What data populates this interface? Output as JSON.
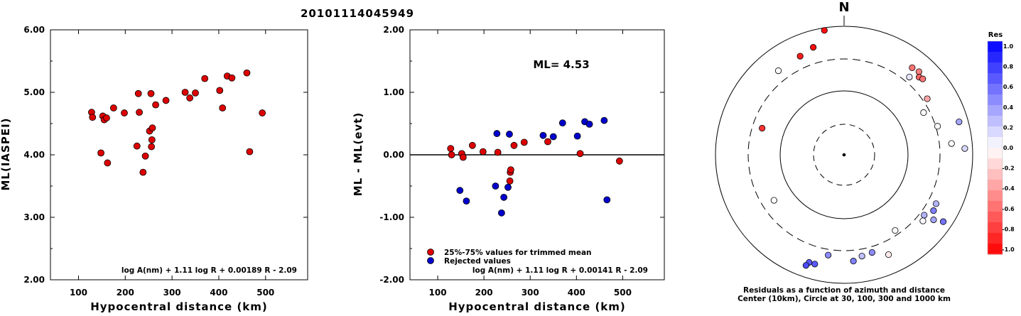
{
  "title": "20101114045949",
  "chart_data": [
    {
      "type": "scatter",
      "xlabel": "Hypocentral distance (km)",
      "ylabel": "ML(IASPEI)",
      "xlim": [
        40,
        590
      ],
      "ylim": [
        2.0,
        6.0
      ],
      "xticks": [
        "100",
        "200",
        "300",
        "400",
        "500"
      ],
      "yticks": [
        "2.00",
        "3.00",
        "4.00",
        "5.00",
        "6.00"
      ],
      "formula": "log A(nm) + 1.11 log R + 0.00189 R - 2.09",
      "series": [
        {
          "color": "#dd0000",
          "points": [
            [
              128,
              4.68
            ],
            [
              130,
              4.6
            ],
            [
              148,
              4.03
            ],
            [
              152,
              4.62
            ],
            [
              155,
              4.56
            ],
            [
              160,
              4.59
            ],
            [
              162,
              3.87
            ],
            [
              175,
              4.75
            ],
            [
              198,
              4.67
            ],
            [
              225,
              4.14
            ],
            [
              228,
              4.98
            ],
            [
              230,
              4.68
            ],
            [
              238,
              3.72
            ],
            [
              243,
              3.98
            ],
            [
              252,
              4.38
            ],
            [
              255,
              4.98
            ],
            [
              256,
              4.13
            ],
            [
              257,
              4.24
            ],
            [
              258,
              4.43
            ],
            [
              265,
              4.8
            ],
            [
              287,
              4.87
            ],
            [
              328,
              5.0
            ],
            [
              338,
              4.91
            ],
            [
              350,
              4.99
            ],
            [
              370,
              5.22
            ],
            [
              402,
              5.03
            ],
            [
              408,
              4.75
            ],
            [
              418,
              5.26
            ],
            [
              428,
              5.23
            ],
            [
              460,
              5.31
            ],
            [
              466,
              4.05
            ],
            [
              493,
              4.67
            ]
          ]
        }
      ]
    },
    {
      "type": "scatter",
      "xlabel": "Hypocentral distance (km)",
      "ylabel": "ML - ML(evt)",
      "xlim": [
        40,
        590
      ],
      "ylim": [
        -2.0,
        2.0
      ],
      "xticks": [
        "100",
        "200",
        "300",
        "400",
        "500"
      ],
      "yticks": [
        "-2.00",
        "-1.00",
        "0.00",
        "1.00",
        "2.00"
      ],
      "annotation": "ML= 4.53",
      "formula": "log A(nm) + 1.11 log R + 0.00141 R - 2.09",
      "series": [
        {
          "name": "25%-75% values for trimmed mean",
          "color": "#dd0000",
          "points": [
            [
              128,
              0.1
            ],
            [
              130,
              0.0
            ],
            [
              152,
              0.02
            ],
            [
              155,
              -0.04
            ],
            [
              175,
              0.15
            ],
            [
              198,
              0.05
            ],
            [
              230,
              0.04
            ],
            [
              257,
              -0.28
            ],
            [
              258,
              -0.24
            ],
            [
              256,
              -0.42
            ],
            [
              265,
              0.15
            ],
            [
              287,
              0.2
            ],
            [
              338,
              0.21
            ],
            [
              408,
              0.02
            ],
            [
              493,
              -0.1
            ]
          ]
        },
        {
          "name": "Rejected values",
          "color": "#0000cc",
          "points": [
            [
              148,
              -0.57
            ],
            [
              162,
              -0.74
            ],
            [
              225,
              -0.5
            ],
            [
              228,
              0.34
            ],
            [
              238,
              -0.93
            ],
            [
              243,
              -0.68
            ],
            [
              252,
              -0.52
            ],
            [
              255,
              0.33
            ],
            [
              328,
              0.31
            ],
            [
              350,
              0.29
            ],
            [
              370,
              0.51
            ],
            [
              402,
              0.3
            ],
            [
              418,
              0.53
            ],
            [
              428,
              0.49
            ],
            [
              460,
              0.55
            ],
            [
              466,
              -0.72
            ]
          ]
        }
      ]
    }
  ],
  "polar": {
    "north_label": "N",
    "caption_line1": "Residuals as a function of azimuth and distance",
    "caption_line2": "Center (10km), Circle at 30, 100, 300 and 1000 km",
    "stations": [
      {
        "az": 351,
        "dist": 0.98,
        "res": -0.95
      },
      {
        "az": 344,
        "dist": 0.87,
        "res": -0.95
      },
      {
        "az": 336,
        "dist": 0.84,
        "res": -0.9
      },
      {
        "az": 322,
        "dist": 0.83,
        "res": 0.02
      },
      {
        "az": 38,
        "dist": 0.86,
        "res": -0.55
      },
      {
        "az": 42,
        "dist": 0.87,
        "res": -0.5
      },
      {
        "az": 44,
        "dist": 0.84,
        "res": -0.6
      },
      {
        "az": 46,
        "dist": 0.85,
        "res": -0.55
      },
      {
        "az": 40,
        "dist": 0.79,
        "res": 0.1
      },
      {
        "az": 56,
        "dist": 0.78,
        "res": -0.35
      },
      {
        "az": 62,
        "dist": 0.7,
        "res": 0.02
      },
      {
        "az": 73,
        "dist": 0.76,
        "res": 0.02
      },
      {
        "az": 74,
        "dist": 0.93,
        "res": 0.35
      },
      {
        "az": 84,
        "dist": 0.84,
        "res": 0.02
      },
      {
        "az": 87,
        "dist": 0.94,
        "res": 0.15
      },
      {
        "az": 118,
        "dist": 0.81,
        "res": 0.3
      },
      {
        "az": 122,
        "dist": 0.82,
        "res": 0.5
      },
      {
        "az": 126,
        "dist": 0.86,
        "res": 0.35
      },
      {
        "az": 127,
        "dist": 0.78,
        "res": 0.3
      },
      {
        "az": 130,
        "dist": 0.8,
        "res": 0.02
      },
      {
        "az": 124,
        "dist": 0.93,
        "res": 0.55
      },
      {
        "az": 146,
        "dist": 0.71,
        "res": 0.02
      },
      {
        "az": 156,
        "dist": 0.85,
        "res": -0.08
      },
      {
        "az": 164,
        "dist": 0.79,
        "res": 0.45
      },
      {
        "az": 170,
        "dist": 0.8,
        "res": 0.25
      },
      {
        "az": 175,
        "dist": 0.83,
        "res": 0.5
      },
      {
        "az": 189,
        "dist": 0.79,
        "res": 0.45
      },
      {
        "az": 195,
        "dist": 0.88,
        "res": 0.65
      },
      {
        "az": 198,
        "dist": 0.88,
        "res": 0.65
      },
      {
        "az": 199,
        "dist": 0.91,
        "res": 0.7
      },
      {
        "az": 237,
        "dist": 0.65,
        "res": 0.02
      },
      {
        "az": 288,
        "dist": 0.67,
        "res": -0.8
      }
    ]
  },
  "colorbar": {
    "title": "Res",
    "labels": [
      "1.0",
      "0.8",
      "0.6",
      "0.4",
      "0.2",
      "0.0",
      "-0.2",
      "-0.4",
      "-0.6",
      "-0.8",
      "-1.0"
    ],
    "color_positive": "#0000ff",
    "color_negative": "#ff0000"
  }
}
